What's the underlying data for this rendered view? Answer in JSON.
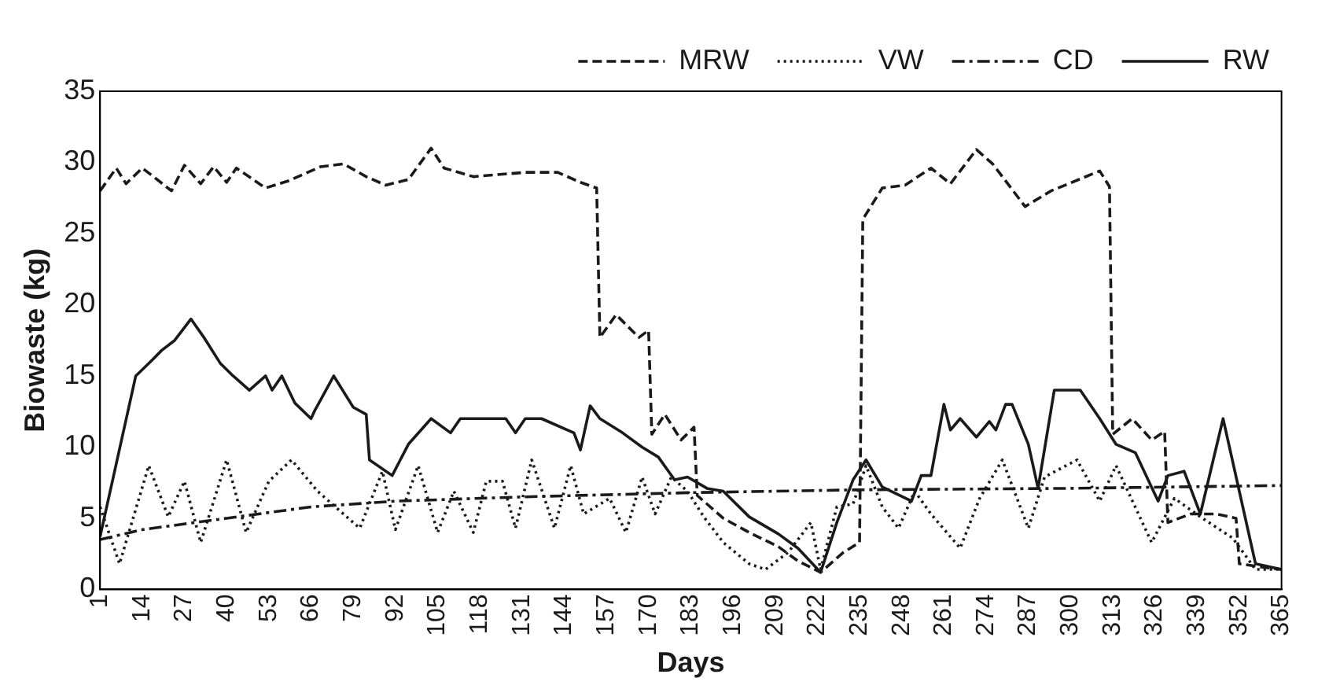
{
  "chart_data": {
    "type": "line",
    "xlabel": "Days",
    "ylabel": "Biowaste (kg)",
    "xlim": [
      1,
      365
    ],
    "xticks": [
      1,
      14,
      27,
      40,
      53,
      66,
      79,
      92,
      105,
      118,
      131,
      144,
      157,
      170,
      183,
      196,
      209,
      222,
      235,
      248,
      261,
      274,
      287,
      300,
      313,
      326,
      339,
      352,
      365
    ],
    "ylim": [
      0,
      35
    ],
    "yticks": [
      0,
      5,
      10,
      15,
      20,
      25,
      30,
      35
    ],
    "grid": false,
    "legend": "top right",
    "marker": "none",
    "series": [
      {
        "name": "MRW",
        "color": "#1a1a1a",
        "line_style": "dashed",
        "x": [
          1,
          6,
          9,
          14,
          18,
          23,
          27,
          32,
          36,
          40,
          43,
          52,
          59,
          69,
          76,
          83,
          89,
          96,
          103,
          107,
          116,
          132,
          142,
          149,
          154,
          155,
          160,
          167,
          170,
          171,
          175,
          180,
          184,
          185,
          193,
          201,
          210,
          216,
          223,
          230,
          235,
          236,
          242,
          249,
          257,
          263,
          271,
          276,
          286,
          294,
          309,
          312,
          313,
          319,
          325,
          329,
          330,
          337,
          345,
          351,
          352,
          358,
          365
        ],
        "values": [
          28,
          29.6,
          28.5,
          29.6,
          28.9,
          28,
          29.8,
          28.5,
          29.7,
          28.6,
          29.6,
          28.2,
          28.7,
          29.7,
          29.9,
          29,
          28.4,
          28.8,
          31,
          29.6,
          29,
          29.3,
          29.3,
          28.6,
          28.2,
          17.7,
          19.3,
          17.7,
          18.2,
          10.9,
          12.3,
          10.5,
          11.4,
          6.6,
          5,
          4,
          3,
          2,
          1.2,
          2.6,
          3.3,
          26,
          28.2,
          28.4,
          29.6,
          28.5,
          30.9,
          29.9,
          26.9,
          28,
          29.4,
          28.3,
          10.9,
          12,
          10.5,
          11.1,
          4.7,
          5.3,
          5.3,
          5,
          1.8,
          1.6,
          1.4
        ]
      },
      {
        "name": "VW",
        "color": "#1a1a1a",
        "line_style": "dotted",
        "x": [
          1,
          7,
          16,
          22,
          27,
          32,
          40,
          46,
          53,
          60,
          68,
          81,
          88,
          92,
          99,
          105,
          110,
          116,
          120,
          125,
          129,
          134,
          141,
          146,
          150,
          158,
          163,
          168,
          172,
          177,
          182,
          187,
          193,
          201,
          206,
          213,
          220,
          223,
          228,
          233,
          237,
          242,
          247,
          252,
          257,
          266,
          272,
          279,
          287,
          292,
          302,
          309,
          314,
          325,
          332,
          340,
          350,
          357,
          365
        ],
        "values": [
          5.8,
          1.8,
          8.7,
          5.1,
          7.6,
          3.3,
          9.1,
          4,
          7.6,
          9.1,
          6.9,
          4.3,
          8.3,
          4.2,
          8.7,
          4,
          6.9,
          4,
          7.6,
          7.6,
          4.3,
          9.1,
          4.3,
          8.7,
          5.3,
          6.4,
          4,
          7.9,
          5.3,
          7.9,
          6.9,
          5.1,
          3.3,
          1.8,
          1.4,
          2.6,
          4.7,
          1.4,
          5.8,
          6,
          8.7,
          5.8,
          4.3,
          6.9,
          5.3,
          2.9,
          6.4,
          9.1,
          4.3,
          7.9,
          9.1,
          6.2,
          8.7,
          3.3,
          6.4,
          5.1,
          3.6,
          1.4,
          1.4
        ]
      },
      {
        "name": "CD",
        "color": "#1a1a1a",
        "line_style": "dashdot",
        "x": [
          1,
          14,
          40,
          66,
          92,
          131,
          183,
          235,
          300,
          365
        ],
        "values": [
          3.5,
          4.2,
          5,
          5.8,
          6.2,
          6.5,
          6.8,
          7,
          7.1,
          7.3
        ]
      },
      {
        "name": "RW",
        "color": "#1a1a1a",
        "line_style": "solid",
        "x": [
          1,
          12,
          17,
          20,
          24,
          29,
          33,
          38,
          42,
          47,
          52,
          54,
          57,
          61,
          66,
          67,
          73,
          79,
          83,
          84,
          91,
          96,
          103,
          109,
          112,
          126,
          129,
          132,
          137,
          147,
          149,
          152,
          155,
          162,
          168,
          173,
          178,
          182,
          188,
          193,
          201,
          210,
          216,
          223,
          228,
          233,
          237,
          242,
          251,
          254,
          257,
          261,
          263,
          266,
          271,
          275,
          277,
          280,
          282,
          287,
          290,
          295,
          303,
          309,
          314,
          320,
          327,
          330,
          335,
          340,
          347,
          357,
          365
        ],
        "values": [
          3.7,
          15,
          16.1,
          16.8,
          17.5,
          19,
          17.7,
          15.9,
          15,
          14,
          15,
          14,
          15,
          13.1,
          12,
          12.5,
          15,
          12.8,
          12.3,
          9.1,
          8,
          10.2,
          12,
          11,
          12,
          12,
          11,
          12,
          12,
          11,
          9.8,
          12.9,
          12,
          11,
          10,
          9.3,
          7.7,
          7.9,
          7.1,
          6.9,
          5.1,
          3.9,
          2.9,
          1.2,
          4.7,
          7.7,
          9.1,
          7.2,
          6.2,
          8,
          8,
          13,
          11.2,
          12,
          10.7,
          11.8,
          11.2,
          13,
          13,
          10.2,
          7.1,
          14,
          14,
          12,
          10.2,
          9.6,
          6.2,
          8,
          8.3,
          5.3,
          12,
          1.8,
          1.4
        ]
      }
    ]
  }
}
